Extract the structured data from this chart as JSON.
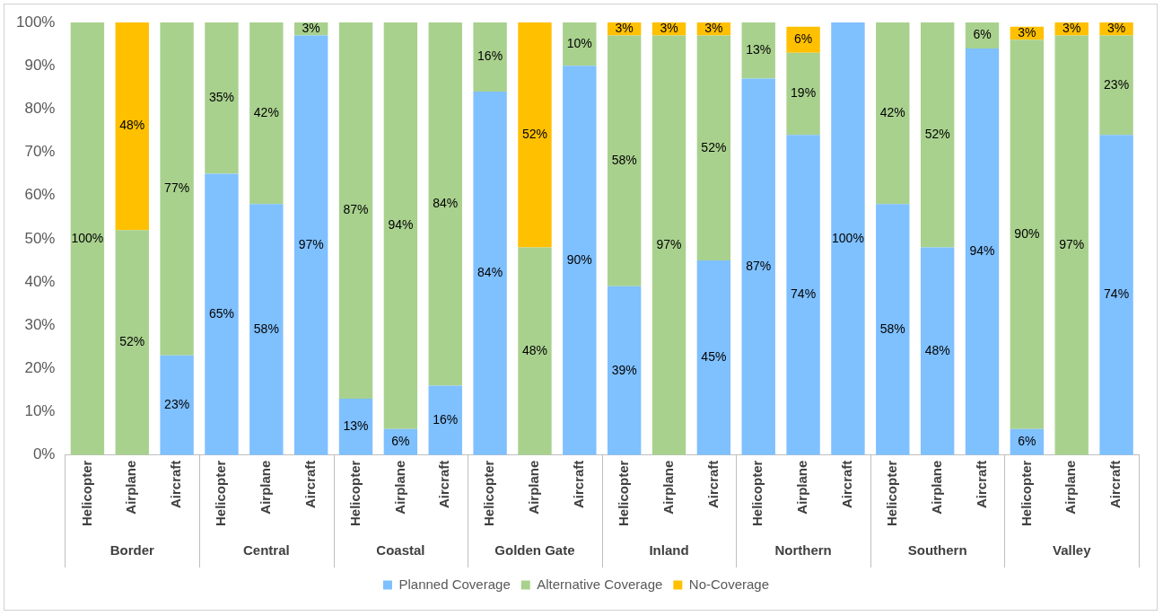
{
  "chart_data": {
    "type": "bar",
    "stacked": true,
    "legend": "bottom",
    "grid": false,
    "categories": [
      "Helicopter",
      "Airplane",
      "Aircraft",
      "Helicopter",
      "Airplane",
      "Aircraft",
      "Helicopter",
      "Airplane",
      "Aircraft",
      "Helicopter",
      "Airplane",
      "Aircraft",
      "Helicopter",
      "Airplane",
      "Aircraft",
      "Helicopter",
      "Airplane",
      "Aircraft",
      "Helicopter",
      "Airplane",
      "Aircraft",
      "Helicopter",
      "Airplane",
      "Aircraft"
    ],
    "annotations": [
      "Border",
      "Central",
      "Coastal",
      "Golden Gate",
      "Inland",
      "Northern",
      "Southern",
      "Valley"
    ],
    "ylim": [
      0,
      100
    ],
    "yticks": [
      {
        "value": 0,
        "label": "0%"
      },
      {
        "value": 10,
        "label": "10%"
      },
      {
        "value": 20,
        "label": "20%"
      },
      {
        "value": 30,
        "label": "30%"
      },
      {
        "value": 40,
        "label": "40%"
      },
      {
        "value": 50,
        "label": "50%"
      },
      {
        "value": 60,
        "label": "60%"
      },
      {
        "value": 70,
        "label": "70%"
      },
      {
        "value": 80,
        "label": "80%"
      },
      {
        "value": 90,
        "label": "90%"
      },
      {
        "value": 100,
        "label": "100%"
      }
    ],
    "series": [
      {
        "name": "Planned Coverage",
        "color": "#7fc0ff",
        "values": [
          0,
          0,
          23,
          65,
          58,
          97,
          13,
          6,
          16,
          84,
          0,
          90,
          39,
          0,
          45,
          87,
          74,
          100,
          58,
          48,
          94,
          6,
          0,
          74
        ],
        "value_labels": [
          null,
          null,
          "23%",
          "65%",
          "58%",
          "97%",
          "13%",
          "6%",
          "16%",
          "84%",
          null,
          "90%",
          "39%",
          null,
          "45%",
          "87%",
          "74%",
          "100%",
          "58%",
          "48%",
          "94%",
          "6%",
          null,
          "74%"
        ]
      },
      {
        "name": "Alternative Coverage",
        "color": "#a9d18e",
        "values": [
          100,
          52,
          77,
          35,
          42,
          3,
          87,
          94,
          84,
          16,
          48,
          10,
          58,
          97,
          52,
          13,
          19,
          0,
          42,
          52,
          6,
          90,
          97,
          23
        ],
        "value_labels": [
          "100%",
          "52%",
          "77%",
          "35%",
          "42%",
          "3%",
          "87%",
          "94%",
          "84%",
          "16%",
          "48%",
          "10%",
          "58%",
          "97%",
          "52%",
          "13%",
          "19%",
          null,
          "42%",
          "52%",
          "6%",
          "90%",
          "97%",
          "23%"
        ]
      },
      {
        "name": "No-Coverage",
        "color": "#ffc000",
        "values": [
          0,
          48,
          0,
          0,
          0,
          0,
          0,
          0,
          0,
          0,
          52,
          0,
          3,
          3,
          3,
          0,
          6,
          0,
          0,
          0,
          0,
          3,
          3,
          3
        ],
        "value_labels": [
          null,
          "48%",
          null,
          null,
          null,
          null,
          null,
          null,
          null,
          null,
          "52%",
          null,
          "3%",
          "3%",
          "3%",
          null,
          "6%",
          null,
          null,
          null,
          null,
          "3%",
          "3%",
          "3%"
        ]
      }
    ]
  }
}
